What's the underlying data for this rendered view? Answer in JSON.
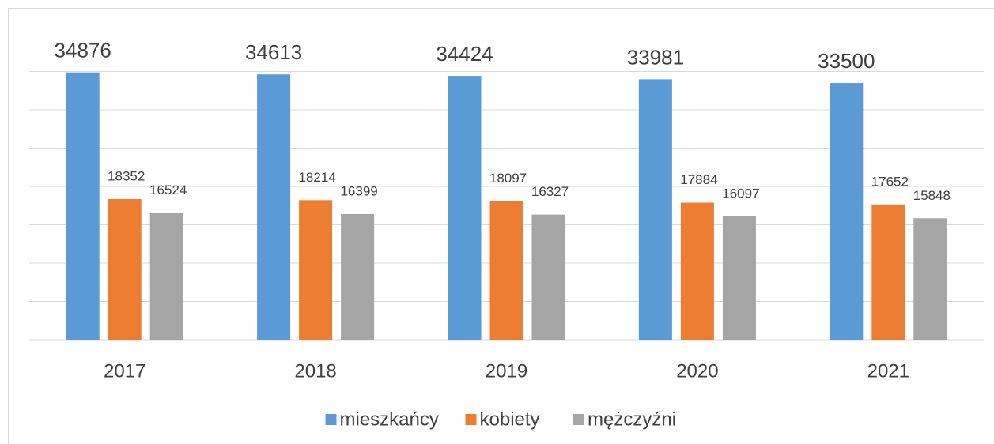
{
  "chart_data": {
    "type": "bar",
    "categories": [
      "2017",
      "2018",
      "2019",
      "2020",
      "2021"
    ],
    "series": [
      {
        "name": "mieszkańcy",
        "color": "#5b9bd5",
        "values": [
          34876,
          34613,
          34424,
          33981,
          33500
        ]
      },
      {
        "name": "kobiety",
        "color": "#ed7d31",
        "values": [
          18352,
          18214,
          18097,
          17884,
          17652
        ]
      },
      {
        "name": "mężczyźni",
        "color": "#a5a5a5",
        "values": [
          16524,
          16399,
          16327,
          16097,
          15848
        ]
      }
    ],
    "ylim": [
      0,
      35000
    ],
    "yticks": [
      0,
      5000,
      10000,
      15000,
      20000,
      25000,
      30000,
      35000
    ],
    "grid": true,
    "legend": "bottom"
  }
}
